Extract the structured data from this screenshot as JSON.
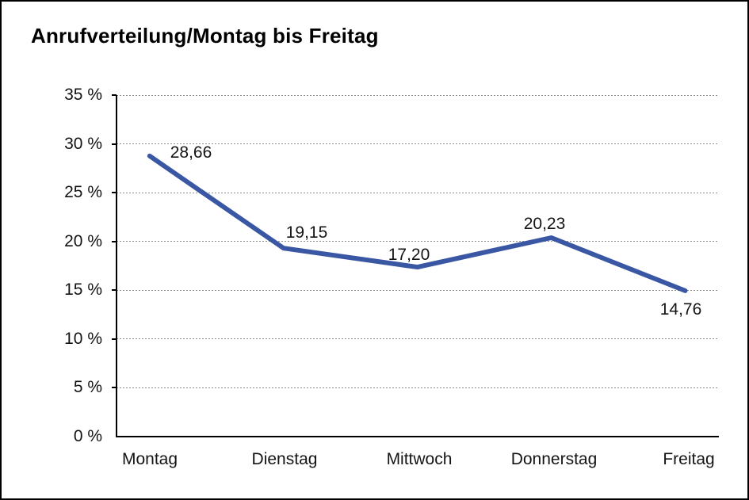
{
  "title": "Anrufverteilung/Montag bis Freitag",
  "colors": {
    "background": "#ffffff",
    "frame_border": "#000000",
    "axis": "#000000",
    "grid": "#8e8e8e",
    "text": "#141414",
    "line": "#3a57a4"
  },
  "chart_data": {
    "type": "line",
    "title": "Anrufverteilung/Montag bis Freitag",
    "categories": [
      "Montag",
      "Dienstag",
      "Mittwoch",
      "Donnerstag",
      "Freitag"
    ],
    "values": [
      28.66,
      19.15,
      17.2,
      20.23,
      14.76
    ],
    "value_labels": [
      "28,66",
      "19,15",
      "17,20",
      "20,23",
      "14,76"
    ],
    "xlabel": "",
    "ylabel": "",
    "ylim": [
      0,
      35
    ],
    "y_ticks": [
      0,
      5,
      10,
      15,
      20,
      25,
      30,
      35
    ],
    "y_tick_labels": [
      "0 %",
      "5 %",
      "10 %",
      "15 %",
      "20 %",
      "25 %",
      "30 %",
      "35 %"
    ],
    "grid": "horizontal-dotted",
    "legend": "none",
    "line_color": "#3a57a4",
    "line_width": 6
  }
}
